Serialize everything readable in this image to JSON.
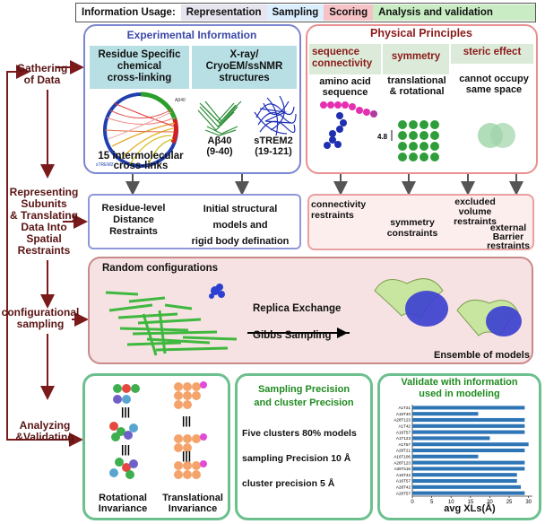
{
  "legend": {
    "title": "Information Usage:",
    "representation": "Representation",
    "sampling": "Sampling",
    "scoring": "Scoring",
    "analysis": "Analysis and validation",
    "colors": {
      "representation": "#e6e4ef",
      "sampling": "#dcefff",
      "scoring": "#f7c2c6",
      "analysis": "#c9ecc4"
    }
  },
  "steps": {
    "gathering": "Gathering\nof Data",
    "representing": "Representing\nSubunits\n& Translating\nData Into\nSpatial\nRestraints",
    "configurational": "configurational\nsampling",
    "analyzing": "Analyzing\n&Validating"
  },
  "experimental": {
    "title": "Experimental Information",
    "crosslink_header": "Residue Specific\nchemical\ncross-linking",
    "xray_header": "X-ray/\nCryoEM/ssNMR\nstructures",
    "crosslink_caption": "15 intermolecular\ncross-links",
    "abeta_caption": "Aβ40\n(9-40)",
    "strem2_caption": "sTREM2\n(19-121)",
    "ring_label_a": "Aβ40",
    "ring_label_b": "sTREM2"
  },
  "physical": {
    "title": "Physical Principles",
    "connectivity_header": "sequence\nconnectivity",
    "symmetry_header": "symmetry",
    "steric_header": "steric effect",
    "connectivity_text": "amino acid\nsequence",
    "symmetry_text": "translational\n& rotational",
    "steric_text": "cannot occupy\nsame space",
    "spacing_label": "4.8"
  },
  "restraints": {
    "residue_level": "Residue-level\nDistance\nRestraints",
    "initial_models": "Initial structural\nmodels and\nrigid body defination",
    "connectivity": "connectivity\nrestraints",
    "symmetry": "symmetry\nconstraints",
    "excluded_volume": "excluded\nvolume\nrestraints",
    "external_barrier": "external\nBarrier\nrestraints"
  },
  "sampling": {
    "random": "Random configurations",
    "replica": "Replica Exchange",
    "gibbs": "Gibbs Sampling",
    "ensemble": "Ensemble of models"
  },
  "invariance": {
    "rotational": "Rotational\nInvariance",
    "translational": "Translational\nInvariance",
    "equiv": "|||"
  },
  "precision": {
    "title": "Sampling Precision\nand cluster Precision",
    "line1": "Five clusters 80% models",
    "line2": "sampling Precision 10 Å",
    "line3": "cluster precision 5 Å"
  },
  "validation": {
    "title": "Validate with information\nused in modeling",
    "xlabel": "avg XLs(Å)"
  },
  "chart_data": {
    "type": "bar",
    "orientation": "horizontal",
    "categories": [
      "A1T21",
      "A16T40",
      "A28T123",
      "A1T42",
      "A16T57",
      "A1T123",
      "A1T57",
      "A28T21",
      "A16T106",
      "A28T123",
      "A28T116",
      "A16T42",
      "A16T57",
      "A28T42",
      "A28T57"
    ],
    "values": [
      29,
      17,
      29,
      29,
      29,
      20,
      30,
      29,
      17,
      29,
      29,
      27,
      27,
      28,
      29
    ],
    "xlabel": "avg XLs(Å)",
    "xticks": [
      0,
      5,
      10,
      15,
      20,
      25,
      30
    ],
    "xlim": [
      0,
      31
    ],
    "bar_color": "#2e75b6"
  }
}
